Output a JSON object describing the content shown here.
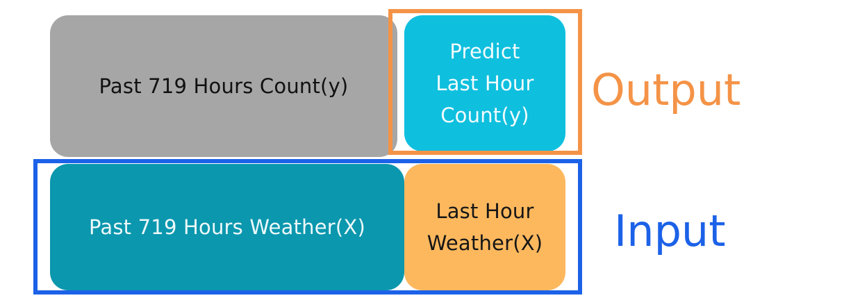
{
  "blocks": {
    "past_count": {
      "lines": [
        "Past 719 Hours Count(y)"
      ]
    },
    "predict_count": {
      "lines": [
        "Predict",
        "Last Hour",
        "Count(y)"
      ]
    },
    "past_weather": {
      "lines": [
        "Past 719 Hours Weather(X)"
      ]
    },
    "last_weather": {
      "lines": [
        "Last Hour",
        "Weather(X)"
      ]
    }
  },
  "labels": {
    "output": "Output",
    "input": "Input"
  },
  "colors": {
    "past_count": "#a6a6a6",
    "predict_count": "#0fbfde",
    "past_weather": "#0b97ae",
    "last_weather": "#fdb85e",
    "output_accent": "#f49347",
    "input_accent": "#1c62e8"
  }
}
